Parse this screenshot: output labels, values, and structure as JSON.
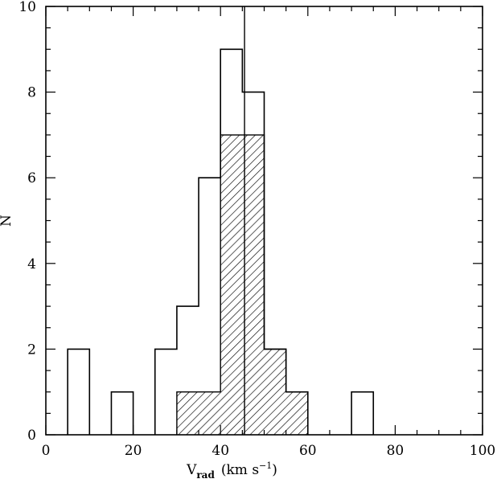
{
  "chart_data": {
    "type": "bar",
    "xlabel": {
      "main": "V",
      "subscript": "rad",
      "units_prefix": "(km s",
      "units_exponent": "−1",
      "units_suffix": ")"
    },
    "ylabel": "N",
    "xlim": [
      0,
      100
    ],
    "ylim": [
      0,
      10
    ],
    "x_ticks": [
      "0",
      "20",
      "40",
      "60",
      "80",
      "100"
    ],
    "y_ticks": [
      "0",
      "2",
      "4",
      "6",
      "8",
      "10"
    ],
    "x_tick_values": [
      0,
      20,
      40,
      60,
      80,
      100
    ],
    "y_tick_values": [
      0,
      2,
      4,
      6,
      8,
      10
    ],
    "bin_width": 5,
    "series": [
      {
        "style": "open",
        "bins": [
          {
            "x0": 5,
            "x1": 10,
            "value": 2
          },
          {
            "x0": 15,
            "x1": 20,
            "value": 1
          },
          {
            "x0": 25,
            "x1": 30,
            "value": 2
          },
          {
            "x0": 30,
            "x1": 35,
            "value": 3
          },
          {
            "x0": 35,
            "x1": 40,
            "value": 6
          },
          {
            "x0": 40,
            "x1": 45,
            "value": 9
          },
          {
            "x0": 45,
            "x1": 50,
            "value": 8
          },
          {
            "x0": 50,
            "x1": 55,
            "value": 2
          },
          {
            "x0": 55,
            "x1": 60,
            "value": 1
          },
          {
            "x0": 70,
            "x1": 75,
            "value": 1
          }
        ]
      },
      {
        "style": "hatched",
        "bins": [
          {
            "x0": 30,
            "x1": 35,
            "value": 1
          },
          {
            "x0": 35,
            "x1": 40,
            "value": 1
          },
          {
            "x0": 40,
            "x1": 45,
            "value": 7
          },
          {
            "x0": 45,
            "x1": 50,
            "value": 7
          },
          {
            "x0": 50,
            "x1": 55,
            "value": 2
          },
          {
            "x0": 55,
            "x1": 60,
            "value": 1
          }
        ]
      }
    ],
    "reference_line_x": 45.5,
    "colors": {
      "ink": "#000000",
      "background": "#ffffff"
    }
  }
}
